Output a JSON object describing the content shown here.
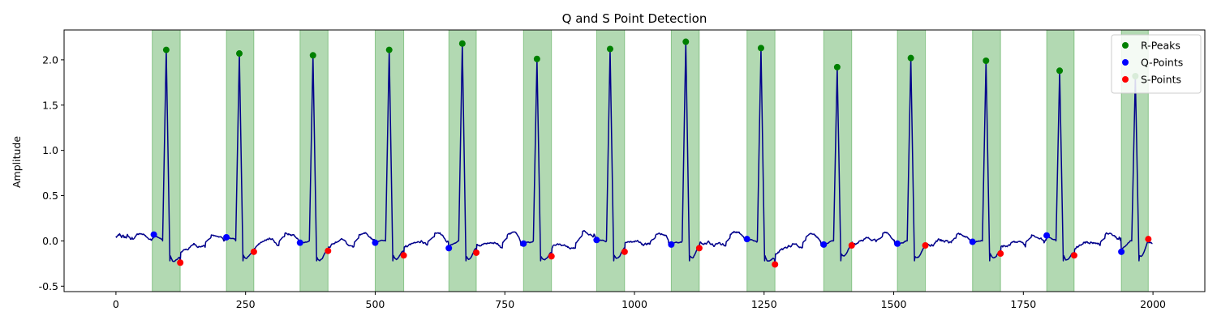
{
  "chart_data": {
    "type": "line",
    "title": "Q and S Point Detection",
    "xlabel": "",
    "ylabel": "Amplitude",
    "xlim": [
      -100,
      2100
    ],
    "ylim": [
      -0.56,
      2.33
    ],
    "xticks": [
      0,
      250,
      500,
      750,
      1000,
      1250,
      1500,
      1750,
      2000
    ],
    "yticks": [
      -0.5,
      0.0,
      0.5,
      1.0,
      1.5,
      2.0
    ],
    "grid": false,
    "legend_position": "top-right",
    "colors": {
      "signal": "#00008b",
      "r_peaks": "#008000",
      "q_points": "#0000ff",
      "s_points": "#ff0000",
      "qrs_region": "#008000"
    },
    "qrs_regions": [
      [
        70,
        124
      ],
      [
        213,
        266
      ],
      [
        355,
        409
      ],
      [
        500,
        555
      ],
      [
        642,
        695
      ],
      [
        786,
        840
      ],
      [
        927,
        981
      ],
      [
        1071,
        1125
      ],
      [
        1217,
        1271
      ],
      [
        1365,
        1419
      ],
      [
        1507,
        1561
      ],
      [
        1652,
        1706
      ],
      [
        1795,
        1848
      ],
      [
        1939,
        1991
      ]
    ],
    "series": [
      {
        "name": "R-Peaks",
        "marker": "circle",
        "points": [
          [
            97,
            2.11
          ],
          [
            238,
            2.07
          ],
          [
            380,
            2.05
          ],
          [
            527,
            2.11
          ],
          [
            668,
            2.18
          ],
          [
            812,
            2.01
          ],
          [
            953,
            2.12
          ],
          [
            1099,
            2.2
          ],
          [
            1244,
            2.13
          ],
          [
            1391,
            1.92
          ],
          [
            1533,
            2.02
          ],
          [
            1678,
            1.99
          ],
          [
            1820,
            1.88
          ],
          [
            1966,
            1.82
          ]
        ]
      },
      {
        "name": "Q-Points",
        "marker": "circle",
        "points": [
          [
            73,
            0.07
          ],
          [
            213,
            0.04
          ],
          [
            355,
            -0.02
          ],
          [
            500,
            -0.02
          ],
          [
            642,
            -0.08
          ],
          [
            786,
            -0.03
          ],
          [
            927,
            0.01
          ],
          [
            1071,
            -0.04
          ],
          [
            1217,
            0.02
          ],
          [
            1365,
            -0.04
          ],
          [
            1507,
            -0.03
          ],
          [
            1652,
            -0.01
          ],
          [
            1795,
            0.06
          ],
          [
            1939,
            -0.12
          ]
        ]
      },
      {
        "name": "S-Points",
        "marker": "circle",
        "points": [
          [
            124,
            -0.24
          ],
          [
            266,
            -0.12
          ],
          [
            409,
            -0.11
          ],
          [
            555,
            -0.16
          ],
          [
            695,
            -0.13
          ],
          [
            840,
            -0.17
          ],
          [
            981,
            -0.12
          ],
          [
            1125,
            -0.08
          ],
          [
            1271,
            -0.26
          ],
          [
            1419,
            -0.05
          ],
          [
            1561,
            -0.05
          ],
          [
            1706,
            -0.14
          ],
          [
            1848,
            -0.16
          ],
          [
            1991,
            0.02
          ]
        ]
      }
    ]
  }
}
